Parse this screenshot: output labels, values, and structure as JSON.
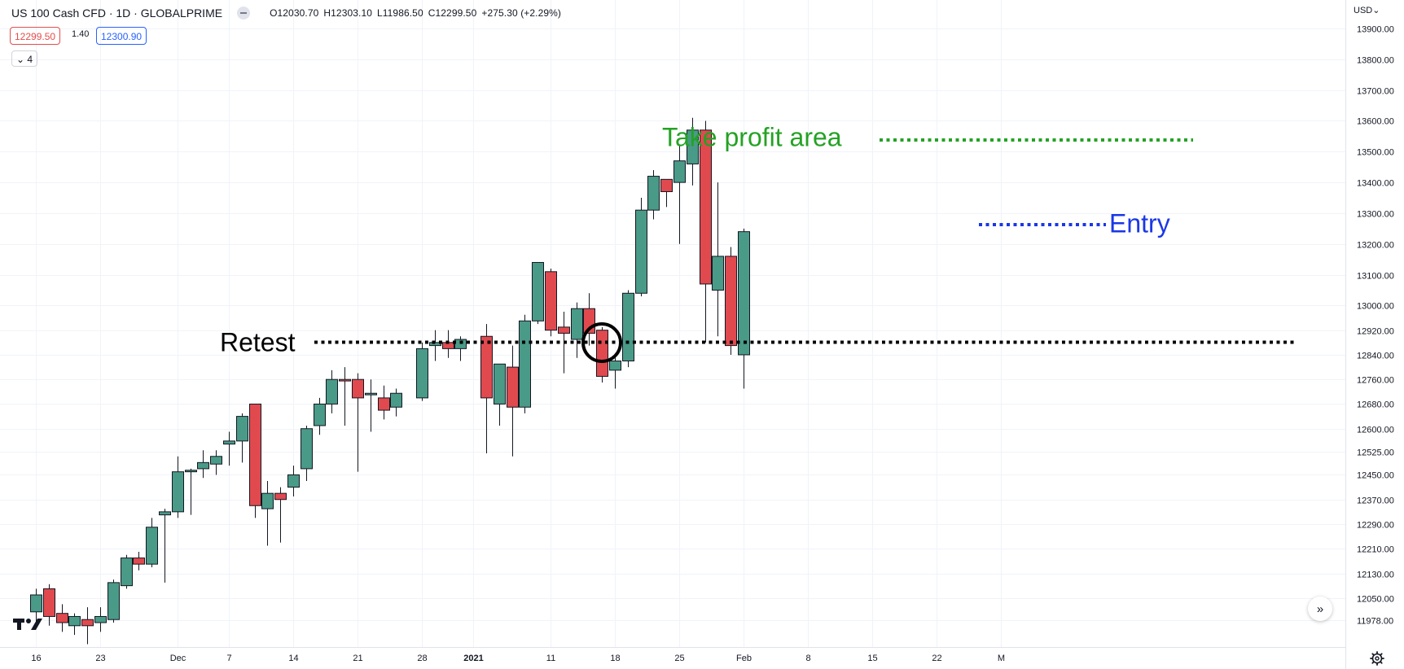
{
  "header": {
    "title": "US 100 Cash CFD · 1D · GLOBALPRIME",
    "open": "O12030.70",
    "high": "H12303.10",
    "low": "L11986.50",
    "close": "C12299.50",
    "change": "+275.30 (+2.29%)"
  },
  "trade": {
    "sell_price": "12299.50",
    "spread": "1.40",
    "buy_price": "12300.90"
  },
  "indicator_toggle": "4",
  "price_scale": {
    "currency": "USD",
    "labels": [
      "13900.00",
      "13800.00",
      "13700.00",
      "13600.00",
      "13500.00",
      "13400.00",
      "13300.00",
      "13200.00",
      "13100.00",
      "13000.00",
      "12920.00",
      "12840.00",
      "12760.00",
      "12680.00",
      "12600.00",
      "12525.00",
      "12450.00",
      "12370.00",
      "12290.00",
      "12210.00",
      "12130.00",
      "12050.00",
      "11978.00"
    ]
  },
  "time_scale": {
    "labels": [
      "16",
      "23",
      "Dec",
      "7",
      "14",
      "21",
      "28",
      "2021",
      "11",
      "18",
      "25",
      "Feb",
      "8",
      "15",
      "22",
      "M"
    ]
  },
  "annotations": {
    "retest": "Retest",
    "take_profit": "Take profit area",
    "entry": "Entry"
  },
  "colors": {
    "up": "#4a9a88",
    "down": "#e04a4f",
    "retest_line": "#000000",
    "take_profit": "#24a224",
    "entry": "#1a37e6"
  },
  "chart_data": {
    "type": "candlestick",
    "title": "US 100 Cash CFD · 1D · GLOBALPRIME",
    "y_axis_labels": [
      "13900.00",
      "13800.00",
      "13700.00",
      "13600.00",
      "13500.00",
      "13400.00",
      "13300.00",
      "13200.00",
      "13100.00",
      "13000.00",
      "12920.00",
      "12840.00",
      "12760.00",
      "12680.00",
      "12600.00",
      "12525.00",
      "12450.00",
      "12370.00",
      "12290.00",
      "12210.00",
      "12130.00",
      "12050.00",
      "11978.00"
    ],
    "x_axis_labels": [
      "16",
      "23",
      "Dec",
      "7",
      "14",
      "21",
      "28",
      "2021",
      "11",
      "18",
      "25",
      "Feb",
      "8",
      "15",
      "22",
      "M"
    ],
    "candles": [
      {
        "date": "2020-11-16",
        "o": 12005,
        "h": 12080,
        "l": 11960,
        "c": 12060
      },
      {
        "date": "2020-11-17",
        "o": 12080,
        "h": 12095,
        "l": 11960,
        "c": 11990
      },
      {
        "date": "2020-11-18",
        "o": 12000,
        "h": 12030,
        "l": 11940,
        "c": 11970
      },
      {
        "date": "2020-11-19",
        "o": 11960,
        "h": 12000,
        "l": 11930,
        "c": 11990
      },
      {
        "date": "2020-11-20",
        "o": 11980,
        "h": 12020,
        "l": 11900,
        "c": 11960
      },
      {
        "date": "2020-11-23",
        "o": 11970,
        "h": 12020,
        "l": 11940,
        "c": 11990
      },
      {
        "date": "2020-11-24",
        "o": 11980,
        "h": 12110,
        "l": 11970,
        "c": 12100
      },
      {
        "date": "2020-11-25",
        "o": 12090,
        "h": 12190,
        "l": 12080,
        "c": 12180
      },
      {
        "date": "2020-11-26",
        "o": 12180,
        "h": 12200,
        "l": 12140,
        "c": 12160
      },
      {
        "date": "2020-11-27",
        "o": 12160,
        "h": 12310,
        "l": 12150,
        "c": 12280
      },
      {
        "date": "2020-11-30",
        "o": 12320,
        "h": 12340,
        "l": 12100,
        "c": 12330
      },
      {
        "date": "2020-12-01",
        "o": 12330,
        "h": 12510,
        "l": 12310,
        "c": 12460
      },
      {
        "date": "2020-12-02",
        "o": 12460,
        "h": 12470,
        "l": 12320,
        "c": 12465
      },
      {
        "date": "2020-12-03",
        "o": 12470,
        "h": 12530,
        "l": 12440,
        "c": 12490
      },
      {
        "date": "2020-12-04",
        "o": 12485,
        "h": 12530,
        "l": 12450,
        "c": 12510
      },
      {
        "date": "2020-12-07",
        "o": 12550,
        "h": 12590,
        "l": 12480,
        "c": 12560
      },
      {
        "date": "2020-12-08",
        "o": 12560,
        "h": 12650,
        "l": 12490,
        "c": 12640
      },
      {
        "date": "2020-12-09",
        "o": 12680,
        "h": 12680,
        "l": 12310,
        "c": 12350
      },
      {
        "date": "2020-12-10",
        "o": 12340,
        "h": 12430,
        "l": 12220,
        "c": 12390
      },
      {
        "date": "2020-12-11",
        "o": 12390,
        "h": 12410,
        "l": 12230,
        "c": 12370
      },
      {
        "date": "2020-12-14",
        "o": 12410,
        "h": 12480,
        "l": 12380,
        "c": 12450
      },
      {
        "date": "2020-12-15",
        "o": 12470,
        "h": 12610,
        "l": 12430,
        "c": 12600
      },
      {
        "date": "2020-12-16",
        "o": 12610,
        "h": 12700,
        "l": 12580,
        "c": 12680
      },
      {
        "date": "2020-12-17",
        "o": 12680,
        "h": 12790,
        "l": 12650,
        "c": 12760
      },
      {
        "date": "2020-12-18",
        "o": 12760,
        "h": 12800,
        "l": 12610,
        "c": 12755
      },
      {
        "date": "2020-12-21",
        "o": 12760,
        "h": 12780,
        "l": 12460,
        "c": 12700
      },
      {
        "date": "2020-12-22",
        "o": 12710,
        "h": 12760,
        "l": 12590,
        "c": 12715
      },
      {
        "date": "2020-12-23",
        "o": 12700,
        "h": 12740,
        "l": 12630,
        "c": 12660
      },
      {
        "date": "2020-12-24",
        "o": 12670,
        "h": 12730,
        "l": 12640,
        "c": 12715
      },
      {
        "date": "2020-12-28",
        "o": 12700,
        "h": 12880,
        "l": 12690,
        "c": 12860
      },
      {
        "date": "2020-12-29",
        "o": 12870,
        "h": 12920,
        "l": 12820,
        "c": 12880
      },
      {
        "date": "2020-12-30",
        "o": 12880,
        "h": 12920,
        "l": 12830,
        "c": 12860
      },
      {
        "date": "2020-12-31",
        "o": 12860,
        "h": 12900,
        "l": 12820,
        "c": 12890
      },
      {
        "date": "2021-01-04",
        "o": 12900,
        "h": 12940,
        "l": 12520,
        "c": 12700
      },
      {
        "date": "2021-01-05",
        "o": 12680,
        "h": 12810,
        "l": 12610,
        "c": 12810
      },
      {
        "date": "2021-01-06",
        "o": 12800,
        "h": 12870,
        "l": 12510,
        "c": 12670
      },
      {
        "date": "2021-01-07",
        "o": 12670,
        "h": 12970,
        "l": 12650,
        "c": 12950
      },
      {
        "date": "2021-01-08",
        "o": 12950,
        "h": 13140,
        "l": 12940,
        "c": 13140
      },
      {
        "date": "2021-01-11",
        "o": 13110,
        "h": 13120,
        "l": 12900,
        "c": 12920
      },
      {
        "date": "2021-01-12",
        "o": 12930,
        "h": 12980,
        "l": 12780,
        "c": 12910
      },
      {
        "date": "2021-01-13",
        "o": 12890,
        "h": 13010,
        "l": 12830,
        "c": 12990
      },
      {
        "date": "2021-01-14",
        "o": 12990,
        "h": 13040,
        "l": 12870,
        "c": 12910
      },
      {
        "date": "2021-01-15",
        "o": 12920,
        "h": 12930,
        "l": 12750,
        "c": 12770
      },
      {
        "date": "2021-01-18",
        "o": 12790,
        "h": 12840,
        "l": 12730,
        "c": 12820
      },
      {
        "date": "2021-01-19",
        "o": 12820,
        "h": 13050,
        "l": 12800,
        "c": 13040
      },
      {
        "date": "2021-01-20",
        "o": 13040,
        "h": 13350,
        "l": 13030,
        "c": 13310
      },
      {
        "date": "2021-01-21",
        "o": 13310,
        "h": 13440,
        "l": 13280,
        "c": 13420
      },
      {
        "date": "2021-01-22",
        "o": 13410,
        "h": 13410,
        "l": 13320,
        "c": 13370
      },
      {
        "date": "2021-01-25",
        "o": 13400,
        "h": 13520,
        "l": 13200,
        "c": 13470
      },
      {
        "date": "2021-01-26",
        "o": 13460,
        "h": 13610,
        "l": 13390,
        "c": 13570
      },
      {
        "date": "2021-01-27",
        "o": 13570,
        "h": 13600,
        "l": 12880,
        "c": 13070
      },
      {
        "date": "2021-01-28",
        "o": 13050,
        "h": 13400,
        "l": 12900,
        "c": 13160
      },
      {
        "date": "2021-01-29",
        "o": 13160,
        "h": 13190,
        "l": 12840,
        "c": 12870
      },
      {
        "date": "2021-02-01",
        "o": 12840,
        "h": 13250,
        "l": 12730,
        "c": 13240
      }
    ]
  }
}
